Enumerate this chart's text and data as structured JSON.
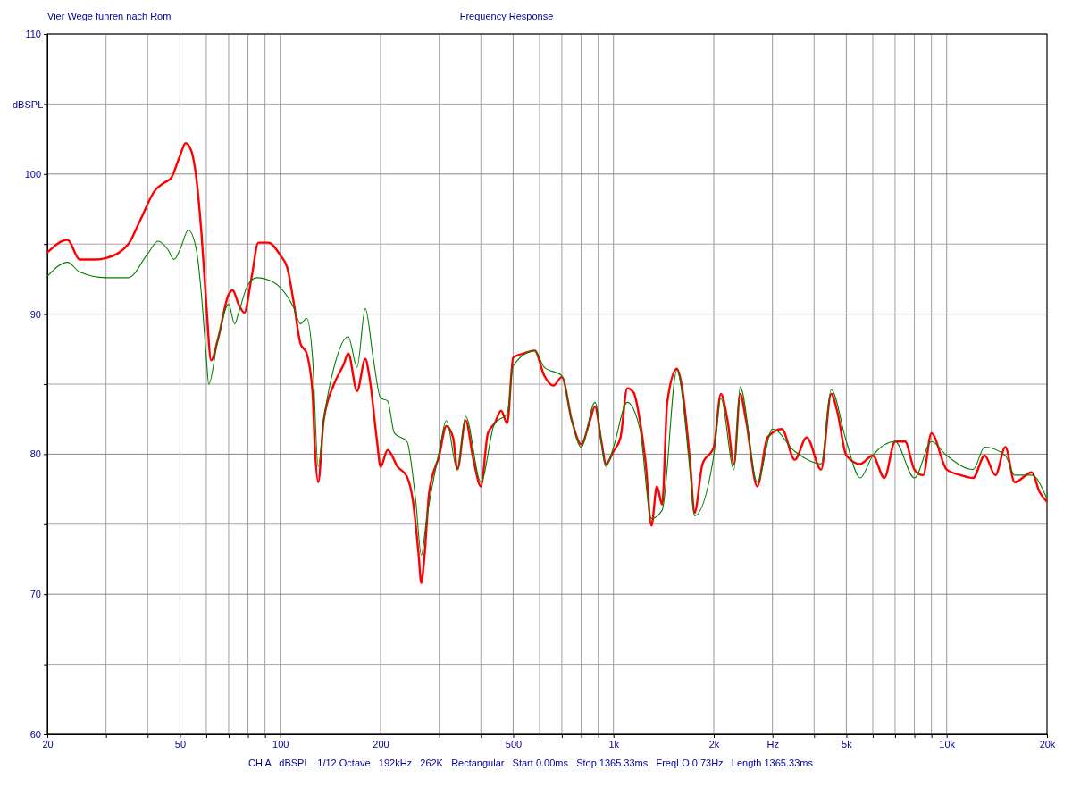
{
  "chart_data": {
    "type": "line",
    "title": "Vier Wege führen nach Rom",
    "subtitle": "Frequency Response",
    "ylabel": "dBSPL",
    "annotations": [
      "CH A   dBSPL   1/12 Octave   192kHz   262K   Rectangular   Start 0.00ms   Stop 1365.33ms   FreqLO 0.73Hz   Length 1365.33ms"
    ],
    "log": "x",
    "grid": true,
    "marker": "none",
    "line_style": "solid",
    "xlim": [
      20,
      20000
    ],
    "ylim": [
      60,
      110
    ],
    "xticks": [
      20,
      {
        "value": 30,
        "label": null
      },
      {
        "value": 40,
        "label": null
      },
      50,
      {
        "value": 60,
        "label": null
      },
      {
        "value": 70,
        "label": null
      },
      {
        "value": 80,
        "label": null
      },
      {
        "value": 90,
        "label": null
      },
      100,
      200,
      {
        "value": 300,
        "label": null
      },
      {
        "value": 400,
        "label": null
      },
      500,
      {
        "value": 600,
        "label": null
      },
      {
        "value": 700,
        "label": null
      },
      {
        "value": 800,
        "label": null
      },
      {
        "value": 900,
        "label": null
      },
      {
        "value": 1000,
        "label": "1k"
      },
      {
        "value": 2000,
        "label": "2k"
      },
      {
        "value": 3000,
        "label": "Hz"
      },
      {
        "value": 4000,
        "label": null
      },
      {
        "value": 5000,
        "label": "5k"
      },
      {
        "value": 6000,
        "label": null
      },
      {
        "value": 7000,
        "label": null
      },
      {
        "value": 8000,
        "label": null
      },
      {
        "value": 9000,
        "label": null
      },
      {
        "value": 10000,
        "label": "10k"
      },
      {
        "value": 20000,
        "label": "20k"
      }
    ],
    "yticks": [
      60,
      {
        "value": 65,
        "label": null
      },
      70,
      {
        "value": 75,
        "label": null
      },
      80,
      {
        "value": 85,
        "label": null
      },
      90,
      {
        "value": 95,
        "label": null
      },
      100,
      {
        "value": 105,
        "label": null
      },
      110
    ],
    "series": [
      {
        "color": "#ff0000",
        "x": [
          20,
          23,
          25,
          28,
          30,
          35,
          38,
          42,
          45,
          47,
          50,
          52,
          54,
          56,
          58,
          60,
          62,
          65,
          70,
          72,
          75,
          78,
          82,
          86,
          92,
          100,
          105,
          110,
          115,
          120,
          125,
          127,
          130,
          135,
          145,
          155,
          160,
          170,
          180,
          185,
          195,
          200,
          210,
          225,
          240,
          250,
          260,
          265,
          270,
          280,
          300,
          315,
          330,
          340,
          360,
          380,
          400,
          420,
          440,
          460,
          480,
          500,
          540,
          580,
          620,
          660,
          700,
          750,
          800,
          850,
          880,
          920,
          950,
          1000,
          1050,
          1100,
          1150,
          1200,
          1250,
          1300,
          1350,
          1400,
          1450,
          1550,
          1600,
          1700,
          1750,
          1850,
          2000,
          2100,
          2200,
          2300,
          2400,
          2500,
          2700,
          2900,
          3200,
          3500,
          3800,
          4200,
          4500,
          4700,
          5000,
          5500,
          6000,
          6500,
          7000,
          7500,
          8000,
          8500,
          9000,
          10000,
          11000,
          12000,
          13000,
          14000,
          15000,
          16000,
          18000,
          19000,
          20000
        ],
        "values": [
          94.4,
          95.3,
          93.9,
          93.9,
          94.0,
          95.0,
          96.7,
          98.8,
          99.4,
          99.7,
          101.3,
          102.2,
          101.7,
          99.7,
          95.8,
          90.7,
          86.7,
          88.2,
          91.4,
          91.7,
          90.7,
          90.1,
          92.6,
          95.1,
          95.1,
          94.2,
          93.3,
          90.7,
          87.9,
          87.2,
          84.4,
          80.5,
          78.0,
          82.4,
          85.0,
          86.4,
          87.2,
          84.5,
          86.8,
          85.6,
          81.0,
          79.1,
          80.3,
          79.1,
          78.4,
          76.7,
          72.9,
          70.8,
          72.3,
          77.3,
          79.9,
          82.0,
          81.2,
          78.9,
          82.4,
          79.6,
          77.7,
          81.5,
          82.2,
          83.1,
          82.2,
          86.9,
          87.2,
          87.4,
          85.6,
          84.9,
          85.5,
          82.4,
          80.7,
          82.4,
          83.4,
          80.9,
          79.3,
          80.2,
          81.2,
          84.7,
          84.4,
          82.4,
          79.3,
          74.9,
          77.7,
          76.4,
          83.7,
          86.1,
          85.0,
          79.3,
          75.8,
          79.3,
          80.5,
          84.3,
          82.4,
          79.3,
          84.3,
          82.4,
          77.7,
          81.2,
          81.8,
          79.6,
          81.2,
          78.9,
          84.3,
          83.0,
          79.9,
          79.3,
          79.9,
          78.3,
          80.9,
          80.9,
          78.9,
          78.5,
          81.5,
          78.9,
          78.5,
          78.3,
          79.9,
          78.5,
          80.5,
          78.0,
          78.7,
          77.3,
          76.6
        ]
      },
      {
        "color": "#008000",
        "x": [
          20,
          23,
          25,
          30,
          35,
          40,
          43,
          46,
          48,
          50,
          53,
          56,
          58,
          60,
          61,
          65,
          70,
          73,
          75,
          80,
          85,
          95,
          100,
          110,
          115,
          120,
          125,
          130,
          135,
          145,
          160,
          170,
          180,
          190,
          200,
          210,
          220,
          240,
          255,
          265,
          275,
          300,
          315,
          340,
          360,
          400,
          440,
          480,
          500,
          580,
          620,
          700,
          750,
          800,
          880,
          950,
          1000,
          1100,
          1200,
          1300,
          1400,
          1550,
          1700,
          1750,
          2000,
          2100,
          2300,
          2400,
          2700,
          3000,
          3500,
          4200,
          4500,
          5000,
          5500,
          6000,
          7000,
          8000,
          9000,
          10000,
          12000,
          13000,
          15000,
          16000,
          18000,
          20000
        ],
        "values": [
          92.7,
          93.7,
          93.0,
          92.6,
          92.6,
          94.3,
          95.2,
          94.6,
          93.9,
          94.6,
          96.0,
          94.6,
          91.4,
          86.9,
          85.0,
          88.2,
          90.7,
          89.3,
          90.1,
          92.1,
          92.6,
          92.3,
          91.9,
          90.4,
          89.3,
          89.7,
          86.9,
          79.1,
          82.4,
          86.2,
          88.4,
          86.2,
          90.4,
          86.9,
          84.0,
          83.8,
          81.5,
          80.9,
          76.7,
          72.8,
          75.4,
          80.2,
          82.4,
          78.9,
          82.7,
          78.0,
          82.2,
          82.9,
          86.3,
          87.4,
          86.2,
          85.6,
          82.4,
          80.5,
          83.7,
          79.1,
          80.5,
          83.7,
          81.8,
          75.4,
          76.0,
          86.0,
          78.6,
          75.6,
          79.9,
          84.0,
          78.9,
          84.8,
          78.0,
          81.8,
          80.2,
          79.3,
          84.6,
          80.9,
          78.3,
          79.9,
          80.9,
          78.3,
          80.9,
          79.9,
          78.9,
          80.5,
          79.9,
          78.5,
          78.5,
          76.8
        ]
      }
    ]
  }
}
